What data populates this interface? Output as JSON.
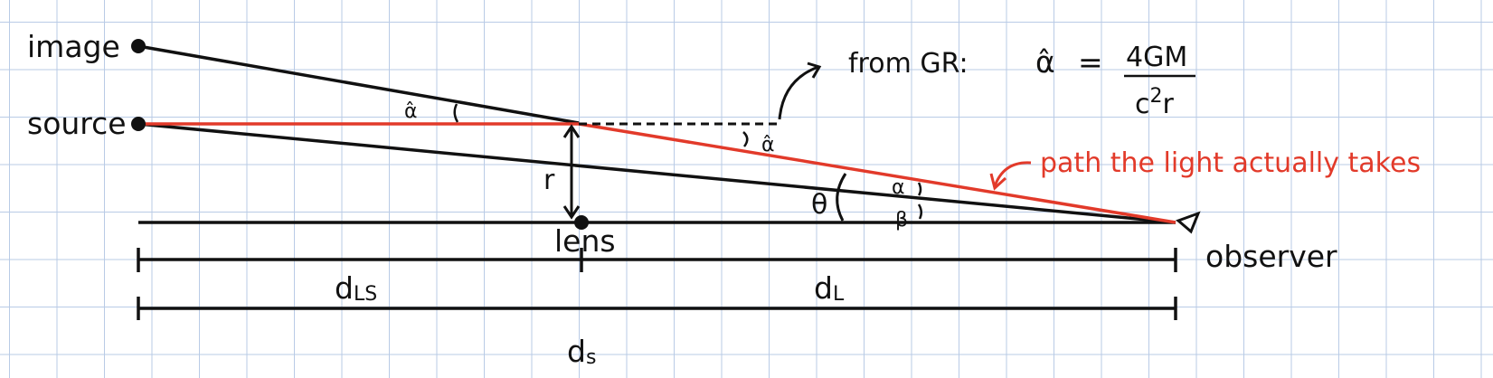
{
  "diagram": {
    "labels": {
      "image": "image",
      "source": "source",
      "lens": "lens",
      "observer": "observer",
      "r": "r",
      "theta": "θ",
      "alpha": "α",
      "beta": "β",
      "alpha_hat": "α̂",
      "d_ls": "d",
      "d_ls_sub": "LS",
      "d_l": "d",
      "d_l_sub": "L",
      "d_s": "d",
      "d_s_sub": "s",
      "path_annotation": "path the light actually takes"
    },
    "formula": {
      "prefix": "from GR:",
      "lhs": "α̂",
      "equals": "=",
      "numerator": "4GM",
      "denominator_c": "c",
      "denominator_exp": "2",
      "denominator_r": "r"
    },
    "colors": {
      "ink": "#111111",
      "light_path": "#e23a2a",
      "grid": "#b9cbe6"
    }
  }
}
